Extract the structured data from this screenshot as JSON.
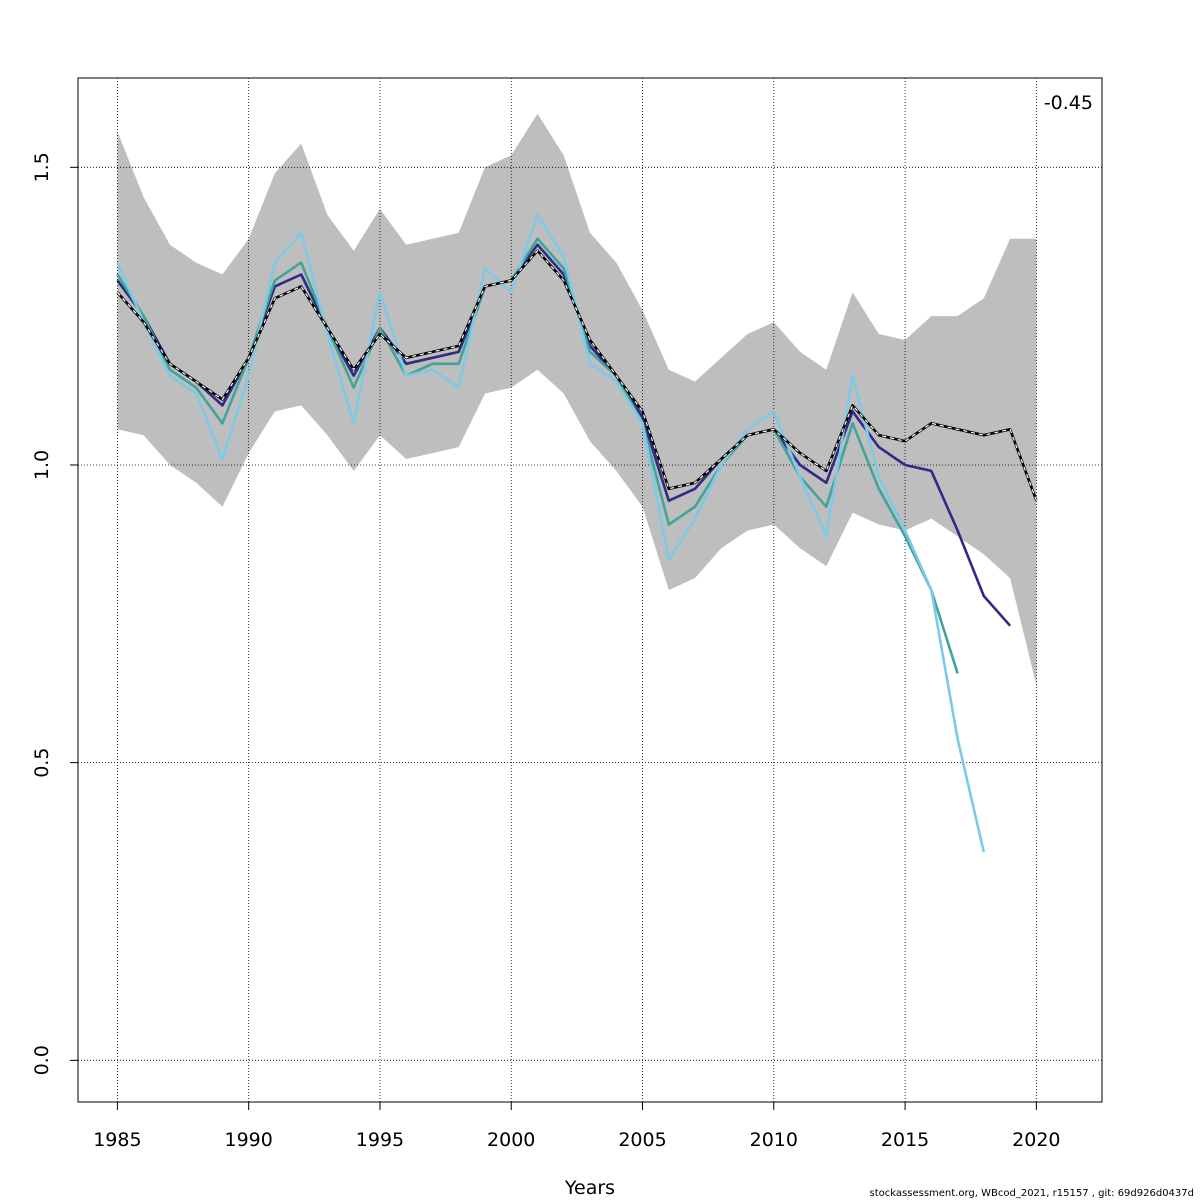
{
  "chart_data": {
    "type": "line",
    "title": "",
    "xlabel": "Years",
    "ylabel": "",
    "xlim": [
      1983.5,
      2022.5
    ],
    "ylim": [
      -0.07,
      1.65
    ],
    "x_ticks": [
      "1985",
      "1990",
      "1995",
      "2000",
      "2005",
      "2010",
      "2015",
      "2020"
    ],
    "y_ticks": [
      "0.0",
      "0.5",
      "1.0",
      "1.5"
    ],
    "grid": true,
    "annotation": "-0.45",
    "confidence_band": {
      "x": [
        1985,
        1986,
        1987,
        1988,
        1989,
        1990,
        1991,
        1992,
        1993,
        1994,
        1995,
        1996,
        1997,
        1998,
        1999,
        2000,
        2001,
        2002,
        2003,
        2004,
        2005,
        2006,
        2007,
        2008,
        2009,
        2010,
        2011,
        2012,
        2013,
        2014,
        2015,
        2016,
        2017,
        2018,
        2019,
        2020
      ],
      "upper": [
        1.56,
        1.45,
        1.37,
        1.34,
        1.32,
        1.38,
        1.49,
        1.54,
        1.42,
        1.36,
        1.43,
        1.37,
        1.38,
        1.39,
        1.5,
        1.52,
        1.59,
        1.52,
        1.39,
        1.34,
        1.26,
        1.16,
        1.14,
        1.18,
        1.22,
        1.24,
        1.19,
        1.16,
        1.29,
        1.22,
        1.21,
        1.25,
        1.25,
        1.28,
        1.38,
        1.38
      ],
      "lower": [
        1.06,
        1.05,
        1.0,
        0.97,
        0.93,
        1.02,
        1.09,
        1.1,
        1.05,
        0.99,
        1.05,
        1.01,
        1.02,
        1.03,
        1.12,
        1.13,
        1.16,
        1.12,
        1.04,
        0.99,
        0.93,
        0.79,
        0.81,
        0.86,
        0.89,
        0.9,
        0.86,
        0.83,
        0.92,
        0.9,
        0.89,
        0.91,
        0.88,
        0.85,
        0.81,
        0.63
      ]
    },
    "series": [
      {
        "color": "#000000",
        "dashed": true,
        "x": [
          1985,
          1986,
          1987,
          1988,
          1989,
          1990,
          1991,
          1992,
          1993,
          1994,
          1995,
          1996,
          1997,
          1998,
          1999,
          2000,
          2001,
          2002,
          2003,
          2004,
          2005,
          2006,
          2007,
          2008,
          2009,
          2010,
          2011,
          2012,
          2013,
          2014,
          2015,
          2016,
          2017,
          2018,
          2019,
          2020
        ],
        "values": [
          1.29,
          1.24,
          1.17,
          1.14,
          1.11,
          1.18,
          1.28,
          1.3,
          1.23,
          1.16,
          1.22,
          1.18,
          1.19,
          1.2,
          1.3,
          1.31,
          1.36,
          1.31,
          1.21,
          1.15,
          1.09,
          0.96,
          0.97,
          1.01,
          1.05,
          1.06,
          1.02,
          0.99,
          1.1,
          1.05,
          1.04,
          1.07,
          1.06,
          1.05,
          1.06,
          0.94
        ]
      },
      {
        "color": "#2E2A85",
        "dashed": false,
        "x": [
          1985,
          1986,
          1987,
          1988,
          1989,
          1990,
          1991,
          1992,
          1993,
          1994,
          1995,
          1996,
          1997,
          1998,
          1999,
          2000,
          2001,
          2002,
          2003,
          2004,
          2005,
          2006,
          2007,
          2008,
          2009,
          2010,
          2011,
          2012,
          2013,
          2014,
          2015,
          2016,
          2017,
          2018,
          2019
        ],
        "values": [
          1.31,
          1.25,
          1.17,
          1.14,
          1.1,
          1.18,
          1.3,
          1.32,
          1.23,
          1.15,
          1.23,
          1.17,
          1.18,
          1.19,
          1.3,
          1.31,
          1.37,
          1.32,
          1.2,
          1.15,
          1.08,
          0.94,
          0.96,
          1.01,
          1.05,
          1.06,
          1.0,
          0.97,
          1.09,
          1.03,
          1.0,
          0.99,
          0.89,
          0.78,
          0.73
        ]
      },
      {
        "color": "#3FA49A",
        "dashed": false,
        "x": [
          1985,
          1986,
          1987,
          1988,
          1989,
          1990,
          1991,
          1992,
          1993,
          1994,
          1995,
          1996,
          1997,
          1998,
          1999,
          2000,
          2001,
          2002,
          2003,
          2004,
          2005,
          2006,
          2007,
          2008,
          2009,
          2010,
          2011,
          2012,
          2013,
          2014,
          2015,
          2016,
          2017
        ],
        "values": [
          1.32,
          1.25,
          1.16,
          1.13,
          1.07,
          1.18,
          1.31,
          1.34,
          1.23,
          1.13,
          1.23,
          1.15,
          1.17,
          1.17,
          1.3,
          1.31,
          1.38,
          1.33,
          1.19,
          1.15,
          1.07,
          0.9,
          0.93,
          1.0,
          1.05,
          1.06,
          0.98,
          0.93,
          1.07,
          0.96,
          0.88,
          0.79,
          0.65
        ]
      },
      {
        "color": "#7EC9E6",
        "dashed": false,
        "x": [
          1985,
          1986,
          1987,
          1988,
          1989,
          1990,
          1991,
          1992,
          1993,
          1994,
          1995,
          1996,
          1997,
          1998,
          1999,
          2000,
          2001,
          2002,
          2003,
          2004,
          2005,
          2006,
          2007,
          2008,
          2009,
          2010,
          2011,
          2012,
          2013,
          2014,
          2015,
          2016,
          2017,
          2018
        ],
        "values": [
          1.34,
          1.24,
          1.15,
          1.12,
          1.01,
          1.15,
          1.34,
          1.39,
          1.22,
          1.07,
          1.29,
          1.15,
          1.16,
          1.13,
          1.33,
          1.29,
          1.42,
          1.35,
          1.17,
          1.14,
          1.07,
          0.84,
          0.91,
          1.0,
          1.06,
          1.09,
          0.98,
          0.88,
          1.15,
          0.98,
          0.89,
          0.79,
          0.54,
          0.35
        ]
      }
    ]
  },
  "footer_text": "stockassessment.org, WBcod_2021, r15157 , git: 69d926d0437d"
}
